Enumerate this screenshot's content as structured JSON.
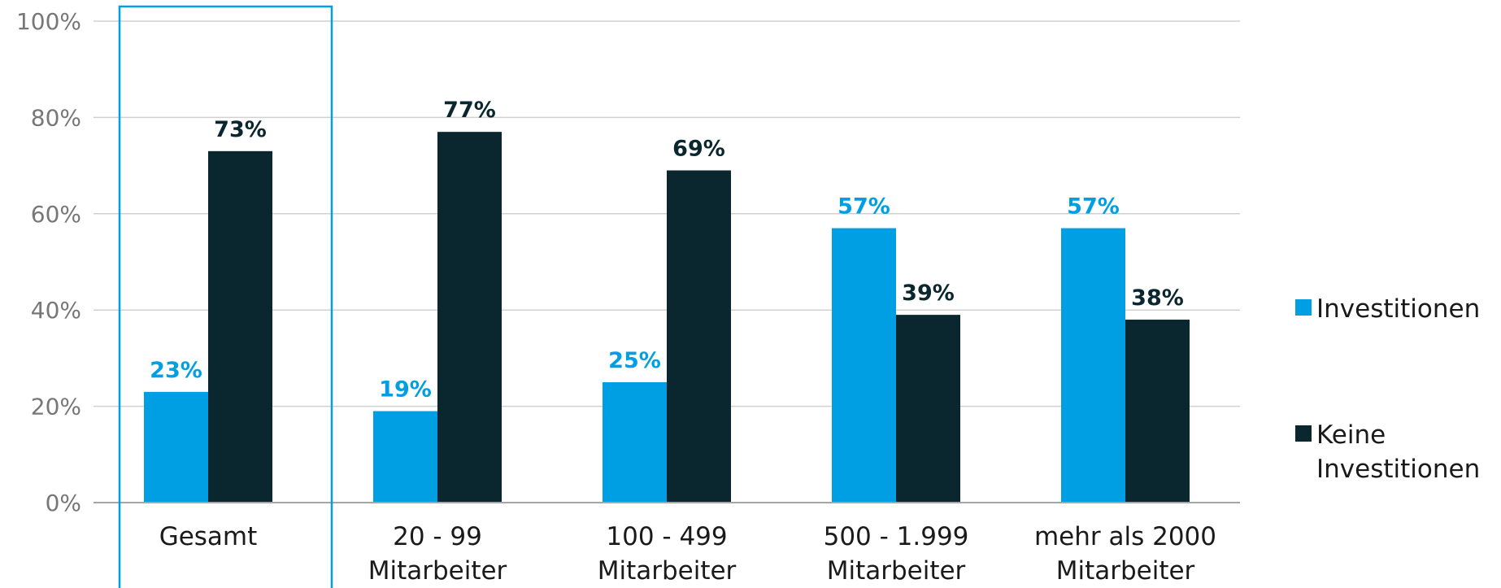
{
  "chart_data": {
    "type": "bar",
    "categories": [
      [
        "Gesamt"
      ],
      [
        "20 - 99",
        "Mitarbeiter"
      ],
      [
        "100 - 499",
        "Mitarbeiter"
      ],
      [
        "500 - 1.999",
        "Mitarbeiter"
      ],
      [
        "mehr als 2000",
        "Mitarbeiter"
      ]
    ],
    "series": [
      {
        "name": "Investitionen",
        "color": "#009fe3",
        "values": [
          23,
          19,
          25,
          57,
          57
        ],
        "labels": [
          "23%",
          "19%",
          "25%",
          "57%",
          "57%"
        ]
      },
      {
        "name": "Keine Investitionen",
        "name_lines": [
          "Keine",
          "Investitionen"
        ],
        "color": "#0a2730",
        "values": [
          73,
          77,
          69,
          39,
          38
        ],
        "labels": [
          "73%",
          "77%",
          "69%",
          "39%",
          "38%"
        ]
      }
    ],
    "y_ticks": [
      "0%",
      "20%",
      "40%",
      "60%",
      "80%",
      "100%"
    ],
    "ylim": [
      0,
      100
    ],
    "grid": true,
    "legend_position": "right",
    "highlighted_category": "Gesamt",
    "highlight_color": "#009fe3",
    "grid_color": "#d0d0d0",
    "axis_color": "#a6a6a6"
  }
}
